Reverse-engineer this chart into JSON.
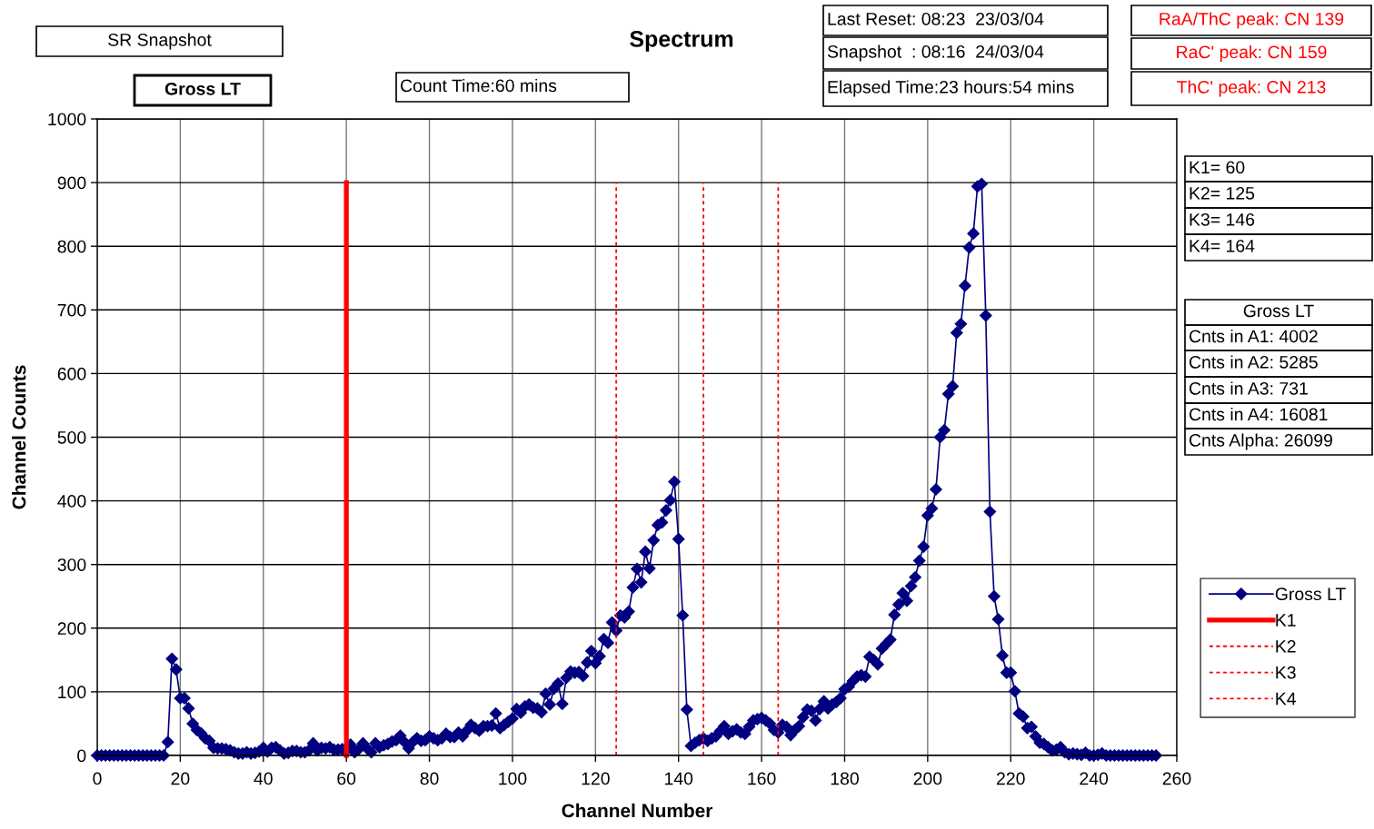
{
  "chart_data": {
    "type": "line",
    "title": "Spectrum",
    "xlabel": "Channel Number",
    "ylabel": "Channel Counts",
    "xlim": [
      0,
      260
    ],
    "xticks": [
      0,
      20,
      40,
      60,
      80,
      100,
      120,
      140,
      160,
      180,
      200,
      220,
      240,
      260
    ],
    "ylim": [
      0,
      1000
    ],
    "yticks": [
      0,
      100,
      200,
      300,
      400,
      500,
      600,
      700,
      800,
      900,
      1000
    ],
    "grid": true,
    "legend": "bottom right",
    "series": [
      {
        "name": "Gross LT",
        "color": "#000080",
        "marker": "diamond",
        "line_style": "solid",
        "x": [
          0,
          1,
          2,
          3,
          4,
          5,
          6,
          7,
          8,
          9,
          10,
          11,
          12,
          13,
          14,
          15,
          16,
          17,
          18,
          19,
          20,
          21,
          22,
          23,
          24,
          25,
          26,
          27,
          28,
          29,
          30,
          31,
          32,
          33,
          34,
          35,
          36,
          37,
          38,
          39,
          40,
          41,
          42,
          43,
          44,
          45,
          46,
          47,
          48,
          49,
          50,
          51,
          52,
          53,
          54,
          55,
          56,
          57,
          58,
          59,
          60,
          61,
          62,
          63,
          64,
          65,
          66,
          67,
          68,
          69,
          70,
          71,
          72,
          73,
          74,
          75,
          76,
          77,
          78,
          79,
          80,
          81,
          82,
          83,
          84,
          85,
          86,
          87,
          88,
          89,
          90,
          91,
          92,
          93,
          94,
          95,
          96,
          97,
          98,
          99,
          100,
          101,
          102,
          103,
          104,
          105,
          106,
          107,
          108,
          109,
          110,
          111,
          112,
          113,
          114,
          115,
          116,
          117,
          118,
          119,
          120,
          121,
          122,
          123,
          124,
          125,
          126,
          127,
          128,
          129,
          130,
          131,
          132,
          133,
          134,
          135,
          136,
          137,
          138,
          139,
          140,
          141,
          142,
          143,
          144,
          145,
          146,
          147,
          148,
          149,
          150,
          151,
          152,
          153,
          154,
          155,
          156,
          157,
          158,
          159,
          160,
          161,
          162,
          163,
          164,
          165,
          166,
          167,
          168,
          169,
          170,
          171,
          172,
          173,
          174,
          175,
          176,
          177,
          178,
          179,
          180,
          181,
          182,
          183,
          184,
          185,
          186,
          187,
          188,
          189,
          190,
          191,
          192,
          193,
          194,
          195,
          196,
          197,
          198,
          199,
          200,
          201,
          202,
          203,
          204,
          205,
          206,
          207,
          208,
          209,
          210,
          211,
          212,
          213,
          214,
          215,
          216,
          217,
          218,
          219,
          220,
          221,
          222,
          223,
          224,
          225,
          226,
          227,
          228,
          229,
          230,
          231,
          232,
          233,
          234,
          235,
          236,
          237,
          238,
          239,
          240,
          241,
          242,
          243,
          244,
          245,
          246,
          247,
          248,
          249,
          250,
          251,
          252,
          253,
          254,
          255
        ],
        "values": [
          0,
          0,
          0,
          0,
          0,
          0,
          0,
          0,
          0,
          0,
          0,
          0,
          0,
          0,
          0,
          0,
          0,
          21,
          152,
          135,
          90,
          90,
          74,
          50,
          40,
          35,
          27,
          23,
          12,
          11,
          11,
          10,
          8,
          5,
          3,
          3,
          5,
          3,
          4,
          6,
          12,
          6,
          12,
          13,
          8,
          3,
          4,
          7,
          7,
          5,
          5,
          8,
          19,
          8,
          12,
          11,
          13,
          9,
          9,
          10,
          8,
          17,
          5,
          10,
          19,
          11,
          5,
          19,
          13,
          16,
          18,
          22,
          24,
          31,
          21,
          11,
          21,
          27,
          23,
          24,
          30,
          27,
          24,
          27,
          34,
          29,
          29,
          36,
          30,
          39,
          48,
          43,
          39,
          46,
          46,
          47,
          66,
          43,
          48,
          53,
          58,
          73,
          67,
          77,
          80,
          75,
          74,
          68,
          97,
          80,
          105,
          113,
          81,
          122,
          132,
          130,
          131,
          125,
          146,
          164,
          145,
          156,
          183,
          177,
          209,
          196,
          220,
          217,
          226,
          264,
          293,
          272,
          320,
          294,
          338,
          362,
          366,
          385,
          401,
          430,
          340,
          220,
          72,
          15,
          20,
          24,
          27,
          23,
          27,
          30,
          38,
          46,
          34,
          38,
          41,
          36,
          34,
          45,
          55,
          57,
          59,
          55,
          50,
          40,
          36,
          48,
          45,
          32,
          40,
          46,
          60,
          72,
          70,
          55,
          73,
          85,
          74,
          80,
          84,
          90,
          104,
          108,
          117,
          124,
          126,
          124,
          155,
          150,
          143,
          168,
          175,
          182,
          221,
          237,
          255,
          243,
          266,
          280,
          306,
          328,
          377,
          388,
          418,
          500,
          511,
          568,
          580,
          664,
          678,
          738,
          798,
          820,
          894,
          898,
          691,
          383,
          250,
          214,
          157,
          130,
          130,
          101,
          66,
          61,
          43,
          45,
          30,
          20,
          18,
          13,
          8,
          9,
          13,
          5,
          2,
          3,
          2,
          1,
          4,
          0,
          0,
          1,
          3,
          0,
          0,
          0,
          0,
          0,
          0,
          0,
          0,
          0,
          0,
          0,
          0,
          0
        ]
      },
      {
        "name": "K1",
        "color": "#ff0000",
        "marker": "none",
        "line_style": "solid",
        "x": [
          60,
          60
        ],
        "values": [
          0,
          900
        ]
      },
      {
        "name": "K2",
        "color": "#ff0000",
        "marker": "none",
        "line_style": "dotted",
        "x": [
          125,
          125
        ],
        "values": [
          0,
          900
        ]
      },
      {
        "name": "K3",
        "color": "#ff0000",
        "marker": "none",
        "line_style": "dotted",
        "x": [
          146,
          146
        ],
        "values": [
          0,
          900
        ]
      },
      {
        "name": "K4",
        "color": "#ff0000",
        "marker": "none",
        "line_style": "dotted",
        "x": [
          164,
          164
        ],
        "values": [
          0,
          900
        ]
      }
    ],
    "annotations": [
      "SR Snapshot",
      "Gross LT",
      "Count Time:60 mins",
      "Last Reset: 08:23  23/03/04",
      "Snapshot  : 08:16  24/03/04",
      "Elapsed Time:23 hours:54 mins",
      "RaA/ThC peak: CN 139",
      "RaC' peak: CN 159",
      "ThC' peak: CN 213",
      "K1= 60",
      "K2= 125",
      "K3= 146",
      "K4= 164",
      "Gross LT",
      "Cnts in A1: 4002",
      "Cnts in A2: 5285",
      "Cnts in A3: 731",
      "Cnts in A4: 16081",
      "Cnts Alpha: 26099"
    ]
  }
}
